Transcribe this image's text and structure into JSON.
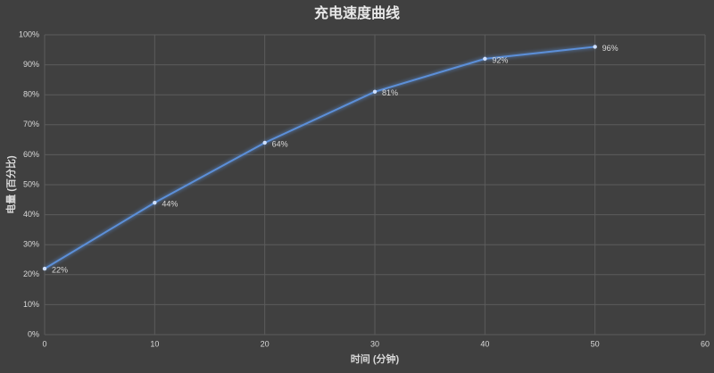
{
  "chart_data": {
    "type": "line",
    "title": "充电速度曲线",
    "x_label": "时间 (分钟)",
    "y_label": "电量 (百分比)",
    "x": [
      0,
      10,
      20,
      30,
      40,
      50
    ],
    "values": [
      22,
      44,
      64,
      81,
      92,
      96
    ],
    "value_labels": [
      "22%",
      "44%",
      "64%",
      "81%",
      "92%",
      "96%"
    ],
    "color": "#5b8fd8",
    "xlim": [
      0,
      60
    ],
    "xticks": [
      0,
      10,
      20,
      30,
      40,
      50,
      60
    ],
    "ylim": [
      0,
      100
    ],
    "yticks": [
      {
        "value": 0,
        "label": "0%"
      },
      {
        "value": 10,
        "label": "10%"
      },
      {
        "value": 20,
        "label": "20%"
      },
      {
        "value": 30,
        "label": "30%"
      },
      {
        "value": 40,
        "label": "40%"
      },
      {
        "value": 50,
        "label": "50%"
      },
      {
        "value": 60,
        "label": "60%"
      },
      {
        "value": 70,
        "label": "70%"
      },
      {
        "value": 80,
        "label": "80%"
      },
      {
        "value": 90,
        "label": "90%"
      },
      {
        "value": 100,
        "label": "100%"
      }
    ],
    "grid": true
  }
}
